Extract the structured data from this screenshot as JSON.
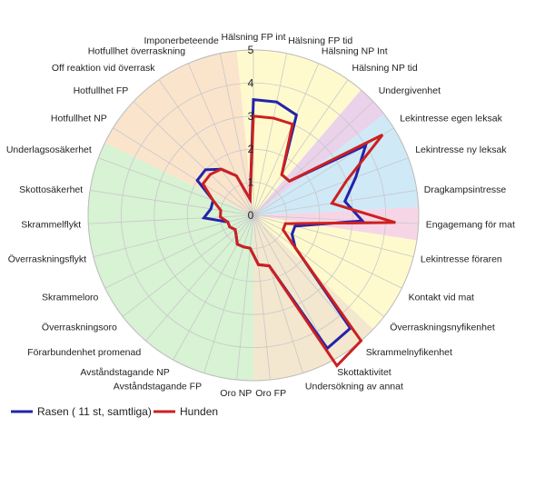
{
  "chart_data": {
    "type": "radar",
    "title": "",
    "rmin": 0,
    "rmax": 5,
    "ticks": [
      0,
      1,
      2,
      3,
      4,
      5
    ],
    "tick_labels": [
      "0",
      "1",
      "2",
      "3",
      "4",
      "5"
    ],
    "grid": true,
    "legend_position": "bottom-left",
    "categories": [
      "Hälsning FP int",
      "Hälsning FP tid",
      "Hälsning NP Int",
      "Hälsning NP tid",
      "Undergivenhet",
      "Lekintresse egen leksak",
      "Lekintresse ny leksak",
      "Dragkampsintresse",
      "Engagemang för mat",
      "Lekintresse föraren",
      "Kontakt vid mat",
      "Överraskningsnyfikenhet",
      "Skrammelnyfikenhet",
      "Skottaktivitet",
      "Undersökning av annat",
      "Oro FP",
      "Oro NP",
      "Avståndstagande FP",
      "Avståndstagande NP",
      "Förarbundenhet promenad",
      "Överraskningsoro",
      "Skrammeloro",
      "Överraskningsflykt",
      "Skrammelflykt",
      "Skottosäkerhet",
      "Underlagsosäkerhet",
      "Hotfullhet NP",
      "Hotfullhet FP",
      "Off reaktion vid överrask",
      "Hotfullhet överraskning",
      "Imponerbeteende"
    ],
    "series": [
      {
        "name": "Rasen ( 11 st, samtliga)",
        "color": "#2323aa",
        "values": [
          3.5,
          3.5,
          3.3,
          1.5,
          1.5,
          4.0,
          3.3,
          2.8,
          3.3,
          1.3,
          1.3,
          1.6,
          4.5,
          4.6,
          1.6,
          1.5,
          1.0,
          1.0,
          1.0,
          0.8,
          0.7,
          0.8,
          0.8,
          1.5,
          1.3,
          1.3,
          2.0,
          2.0,
          1.7,
          1.3,
          0.5
        ]
      },
      {
        "name": "Hunden",
        "color": "#cc2020",
        "values": [
          3.0,
          3.0,
          3.0,
          1.5,
          1.5,
          4.6,
          3.0,
          2.4,
          4.3,
          1.0,
          1.0,
          1.6,
          5.0,
          5.2,
          1.6,
          1.5,
          1.0,
          1.0,
          1.0,
          0.8,
          0.7,
          0.8,
          0.8,
          1.0,
          1.0,
          1.3,
          1.8,
          1.8,
          1.7,
          1.3,
          0.5
        ]
      }
    ],
    "background_bands": [
      {
        "from": "Hälsning FP int",
        "to": "Hälsning NP tid",
        "color": "#fffacd"
      },
      {
        "from": "Undergivenhet",
        "to": "Undergivenhet",
        "color": "#ead2ea"
      },
      {
        "from": "Lekintresse egen leksak",
        "to": "Dragkampsintresse",
        "color": "#cfe9f7"
      },
      {
        "from": "Engagemang för mat",
        "to": "Engagemang för mat",
        "color": "#f6d6e6"
      },
      {
        "from": "Lekintresse föraren",
        "to": "Överraskningsnyfikenhet",
        "color": "#fffacd"
      },
      {
        "from": "Skrammelnyfikenhet",
        "to": "Oro FP",
        "color": "#f3e7cf"
      },
      {
        "from": "Oro NP",
        "to": "Underlagsosäkerhet",
        "color": "#d8f2d4"
      },
      {
        "from": "Hotfullhet NP",
        "to": "Imponerbeteende",
        "color": "#fbe4cc"
      }
    ]
  }
}
